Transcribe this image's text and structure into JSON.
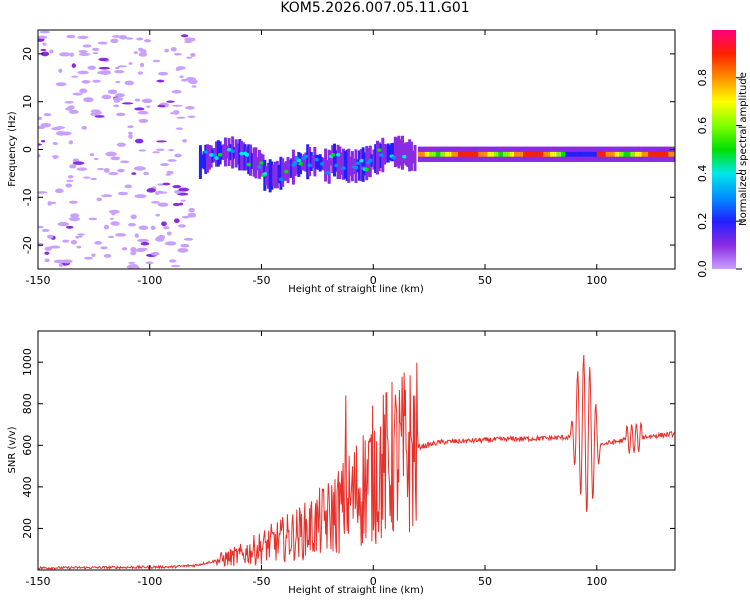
{
  "title": "KOM5.2026.007.05.11.G01",
  "chart_data": [
    {
      "type": "heatmap",
      "name": "spectrogram",
      "xlabel": "Height of straight line (km)",
      "ylabel": "Frequency (Hz)",
      "xlim": [
        -150,
        135
      ],
      "ylim": [
        -25,
        25
      ],
      "xticks": [
        -150,
        -100,
        -50,
        0,
        50,
        100
      ],
      "yticks": [
        -20,
        -10,
        0,
        10,
        20
      ],
      "colorbar": {
        "label": "Normalized spectral amplitude",
        "range": [
          0,
          1
        ],
        "ticks": [
          0.0,
          0.2,
          0.4,
          0.6,
          0.8
        ]
      },
      "features": [
        {
          "region": "scattered noise",
          "x_range": [
            -150,
            -80
          ],
          "freq_range": [
            -25,
            25
          ],
          "amplitude": 0.1
        },
        {
          "region": "turbulent band",
          "x_range": [
            -78,
            18
          ],
          "center_freq": -2,
          "amplitude": 0.3
        },
        {
          "region": "steady carrier",
          "x_range": [
            20,
            135
          ],
          "center_freq": -1,
          "amplitude": 0.9
        }
      ]
    },
    {
      "type": "line",
      "name": "snr",
      "xlabel": "Height of straight line (km)",
      "ylabel": "SNR (v/v)",
      "xlim": [
        -150,
        135
      ],
      "ylim": [
        0,
        1150
      ],
      "xticks": [
        -150,
        -100,
        -50,
        0,
        50,
        100
      ],
      "yticks": [
        200,
        400,
        600,
        800,
        1000
      ],
      "color": "#e8302a",
      "x": [
        -150,
        -120,
        -90,
        -80,
        -70,
        -60,
        -50,
        -40,
        -30,
        -20,
        -12,
        -5,
        0,
        10,
        20,
        30,
        40,
        50,
        60,
        70,
        80,
        88,
        92,
        95,
        98,
        100,
        105,
        110,
        115,
        120,
        125,
        130,
        135
      ],
      "values": [
        10,
        12,
        15,
        22,
        45,
        70,
        110,
        150,
        190,
        250,
        320,
        400,
        460,
        540,
        590,
        615,
        620,
        625,
        630,
        632,
        635,
        640,
        700,
        650,
        620,
        600,
        610,
        620,
        630,
        640,
        645,
        650,
        655
      ]
    }
  ]
}
